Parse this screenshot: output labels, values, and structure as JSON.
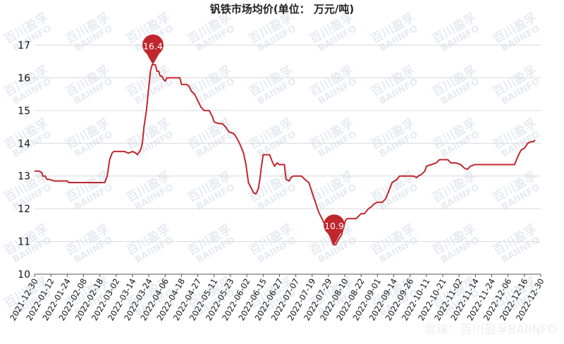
{
  "watermark": {
    "line1": "百川盈孚",
    "line2": "BAIINFO"
  },
  "credit": "雪球：百川盈孚BAIINFO",
  "chart_data": {
    "type": "line",
    "title": "钒铁市场均价(单位：  万元/吨)",
    "xlabel": "",
    "ylabel": "",
    "ylim": [
      10,
      17
    ],
    "yticks": [
      10,
      11,
      12,
      13,
      14,
      15,
      16,
      17
    ],
    "grid": "horizontal",
    "line_color": "#c0272d",
    "x_ticks": [
      "2021-12-30",
      "2022-01-12",
      "2022-01-24",
      "2022-02-08",
      "2022-02-18",
      "2022-03-02",
      "2022-03-14",
      "2022-03-24",
      "2022-04-06",
      "2022-04-18",
      "2022-04-27",
      "2022-05-11",
      "2022-05-23",
      "2022-06-02",
      "2022-06-15",
      "2022-06-27",
      "2022-07-07",
      "2022-07-19",
      "2022-07-29",
      "2022-08-10",
      "2022-08-22",
      "2022-09-01",
      "2022-09-14",
      "2022-09-26",
      "2022-10-11",
      "2022-10-21",
      "2022-11-02",
      "2022-11-14",
      "2022-11-24",
      "2022-12-06",
      "2022-12-16",
      "2022-12-30"
    ],
    "series": [
      {
        "values": [
          [
            0,
            13.15
          ],
          [
            0.3,
            13.15
          ],
          [
            0.45,
            13.1
          ],
          [
            0.5,
            13.0
          ],
          [
            0.65,
            13.0
          ],
          [
            0.75,
            12.9
          ],
          [
            0.9,
            12.9
          ],
          [
            1.2,
            12.85
          ],
          [
            1.5,
            12.85
          ],
          [
            2.0,
            12.85
          ],
          [
            2.1,
            12.8
          ],
          [
            2.5,
            12.8
          ],
          [
            3.0,
            12.8
          ],
          [
            3.5,
            12.8
          ],
          [
            4.0,
            12.8
          ],
          [
            4.3,
            12.8
          ],
          [
            4.45,
            13.0
          ],
          [
            4.6,
            13.5
          ],
          [
            4.75,
            13.7
          ],
          [
            4.85,
            13.75
          ],
          [
            5.0,
            13.75
          ],
          [
            5.5,
            13.75
          ],
          [
            5.75,
            13.7
          ],
          [
            6.0,
            13.75
          ],
          [
            6.2,
            13.7
          ],
          [
            6.3,
            13.65
          ],
          [
            6.5,
            13.8
          ],
          [
            6.6,
            14.0
          ],
          [
            6.7,
            14.5
          ],
          [
            6.85,
            15.0
          ],
          [
            6.95,
            15.5
          ],
          [
            7.1,
            16.2
          ],
          [
            7.2,
            16.4
          ],
          [
            7.4,
            16.4
          ],
          [
            7.5,
            16.2
          ],
          [
            7.6,
            16.2
          ],
          [
            7.7,
            16.05
          ],
          [
            7.8,
            16.05
          ],
          [
            7.9,
            15.95
          ],
          [
            8.0,
            15.9
          ],
          [
            8.1,
            16.0
          ],
          [
            8.3,
            16.0
          ],
          [
            8.5,
            16.0
          ],
          [
            8.9,
            16.0
          ],
          [
            9.0,
            15.8
          ],
          [
            9.3,
            15.8
          ],
          [
            9.45,
            15.75
          ],
          [
            9.6,
            15.6
          ],
          [
            9.8,
            15.5
          ],
          [
            10.0,
            15.3
          ],
          [
            10.2,
            15.1
          ],
          [
            10.4,
            15.0
          ],
          [
            10.7,
            15.0
          ],
          [
            10.9,
            14.8
          ],
          [
            11.0,
            14.65
          ],
          [
            11.3,
            14.6
          ],
          [
            11.5,
            14.6
          ],
          [
            11.7,
            14.5
          ],
          [
            11.9,
            14.35
          ],
          [
            12.2,
            14.3
          ],
          [
            12.4,
            14.15
          ],
          [
            12.6,
            13.95
          ],
          [
            12.8,
            13.7
          ],
          [
            12.95,
            13.35
          ],
          [
            13.1,
            12.8
          ],
          [
            13.25,
            12.65
          ],
          [
            13.4,
            12.5
          ],
          [
            13.55,
            12.45
          ],
          [
            13.7,
            12.6
          ],
          [
            13.8,
            12.9
          ],
          [
            13.9,
            13.3
          ],
          [
            14.0,
            13.65
          ],
          [
            14.2,
            13.65
          ],
          [
            14.4,
            13.65
          ],
          [
            14.55,
            13.45
          ],
          [
            14.7,
            13.3
          ],
          [
            14.85,
            13.4
          ],
          [
            15.0,
            13.35
          ],
          [
            15.3,
            13.35
          ],
          [
            15.4,
            12.9
          ],
          [
            15.6,
            12.85
          ],
          [
            15.7,
            12.95
          ],
          [
            15.85,
            13.0
          ],
          [
            16.2,
            13.0
          ],
          [
            16.35,
            13.0
          ],
          [
            16.55,
            12.9
          ],
          [
            16.8,
            12.8
          ],
          [
            17.0,
            12.5
          ],
          [
            17.2,
            12.2
          ],
          [
            17.4,
            11.9
          ],
          [
            17.6,
            11.7
          ],
          [
            17.8,
            11.5
          ],
          [
            18.0,
            11.3
          ],
          [
            18.15,
            11.1
          ],
          [
            18.3,
            10.9
          ],
          [
            18.45,
            10.9
          ],
          [
            18.6,
            11.05
          ],
          [
            18.8,
            11.2
          ],
          [
            18.95,
            11.5
          ],
          [
            19.05,
            11.65
          ],
          [
            19.15,
            11.7
          ],
          [
            19.4,
            11.7
          ],
          [
            19.7,
            11.7
          ],
          [
            19.9,
            11.8
          ],
          [
            20.0,
            11.85
          ],
          [
            20.2,
            11.85
          ],
          [
            20.45,
            12.0
          ],
          [
            20.6,
            12.05
          ],
          [
            20.8,
            12.15
          ],
          [
            21.0,
            12.2
          ],
          [
            21.3,
            12.2
          ],
          [
            21.5,
            12.3
          ],
          [
            21.7,
            12.55
          ],
          [
            21.9,
            12.8
          ],
          [
            22.2,
            12.9
          ],
          [
            22.35,
            13.0
          ],
          [
            22.5,
            13.0
          ],
          [
            22.9,
            13.0
          ],
          [
            23.2,
            13.0
          ],
          [
            23.4,
            12.95
          ],
          [
            23.5,
            13.0
          ],
          [
            23.7,
            13.05
          ],
          [
            23.9,
            13.15
          ],
          [
            24.0,
            13.3
          ],
          [
            24.3,
            13.35
          ],
          [
            24.6,
            13.4
          ],
          [
            24.8,
            13.5
          ],
          [
            25.0,
            13.5
          ],
          [
            25.3,
            13.5
          ],
          [
            25.5,
            13.4
          ],
          [
            25.8,
            13.4
          ],
          [
            26.1,
            13.35
          ],
          [
            26.3,
            13.25
          ],
          [
            26.5,
            13.2
          ],
          [
            26.7,
            13.3
          ],
          [
            26.95,
            13.35
          ],
          [
            27.5,
            13.35
          ],
          [
            28.0,
            13.35
          ],
          [
            28.5,
            13.35
          ],
          [
            29.0,
            13.35
          ],
          [
            29.4,
            13.35
          ],
          [
            29.6,
            13.6
          ],
          [
            29.8,
            13.8
          ],
          [
            30.0,
            13.85
          ],
          [
            30.2,
            14.0
          ],
          [
            30.4,
            14.05
          ],
          [
            30.55,
            14.05
          ],
          [
            30.65,
            14.1
          ]
        ]
      }
    ],
    "annotations": [
      {
        "label": "16.4",
        "x": 7.25,
        "y": 16.4
      },
      {
        "label": "10.9",
        "x": 18.35,
        "y": 10.9
      }
    ]
  }
}
